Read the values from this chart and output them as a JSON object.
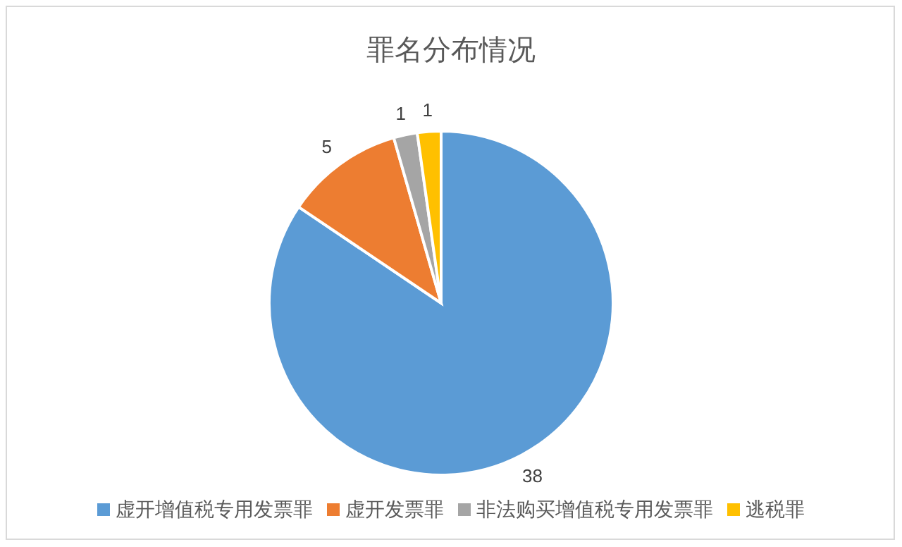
{
  "chart_data": {
    "type": "pie",
    "title": "罪名分布情况",
    "categories": [
      "虚开增值税专用发票罪",
      "虚开发票罪",
      "非法购买增值税专用发票罪",
      "逃税罪"
    ],
    "values": [
      38,
      5,
      1,
      1
    ],
    "colors": [
      "#5b9bd5",
      "#ed7d31",
      "#a5a5a5",
      "#ffc000"
    ],
    "data_labels": true,
    "legend": "bottom"
  }
}
